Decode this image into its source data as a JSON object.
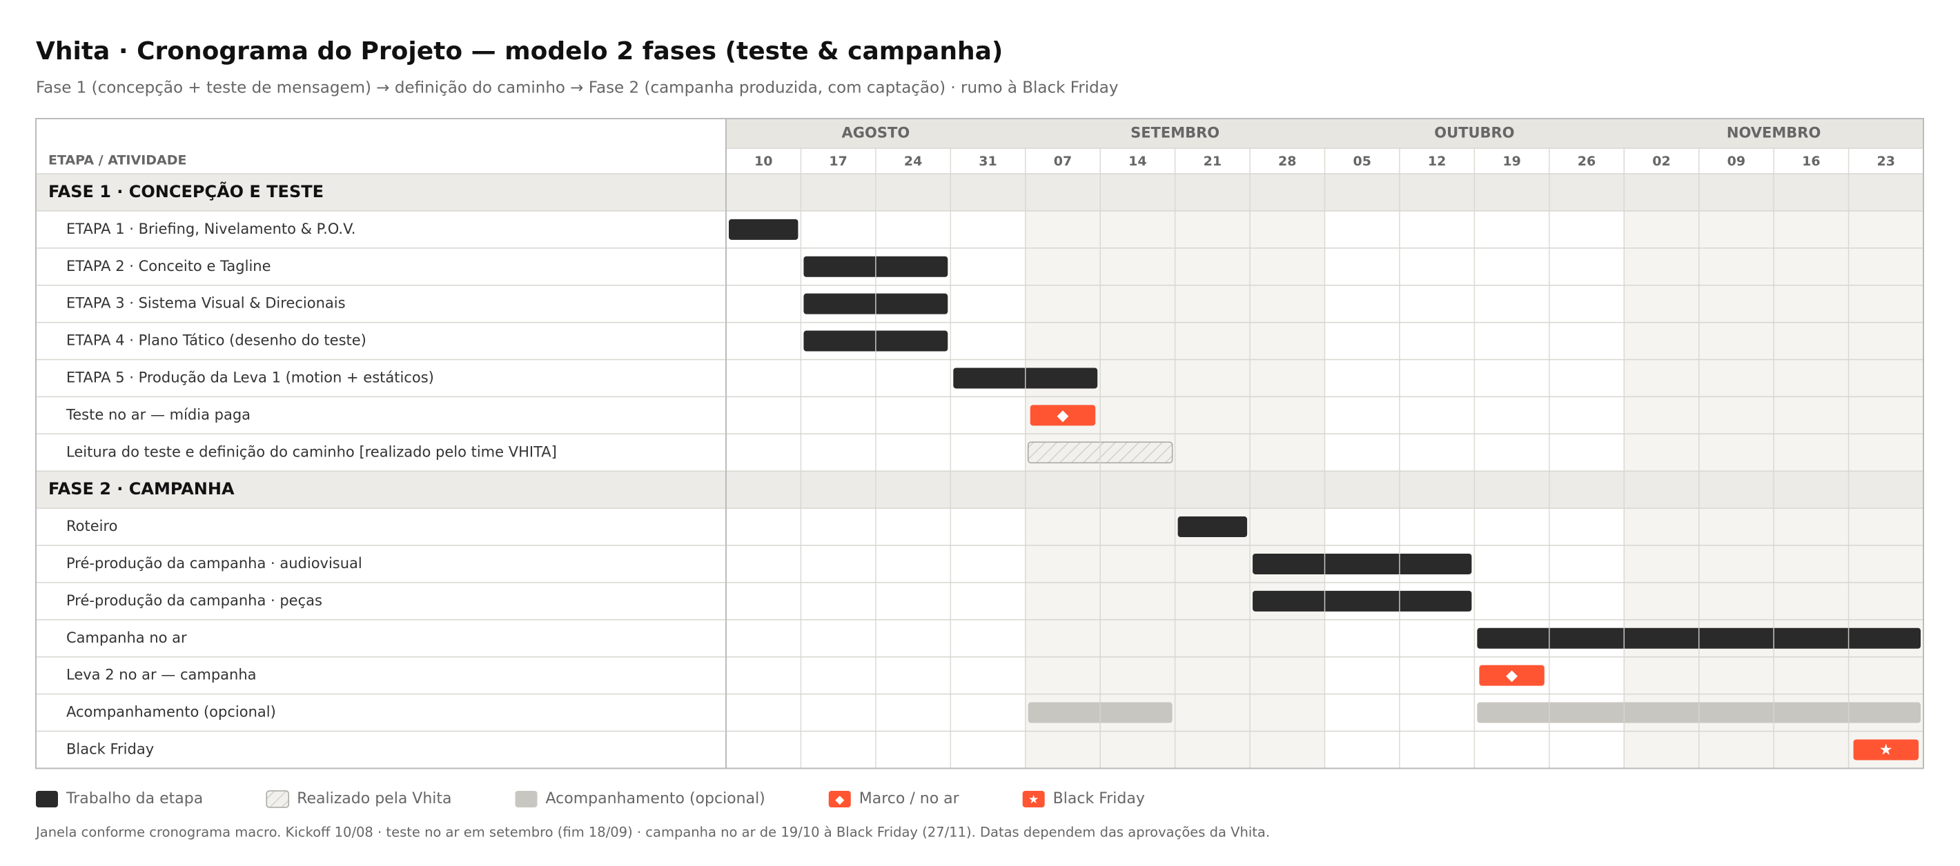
{
  "title": "Vhita · Cronograma do Projeto — modelo 2 fases (teste & campanha)",
  "subtitle": "Fase 1 (concepção + teste de mensagem) → definição do caminho → Fase 2 (campanha produzida, com captação) · rumo à Black Friday",
  "header": {
    "activity": "ETAPA / ATIVIDADE",
    "months": [
      {
        "label": "AGOSTO",
        "start": "10"
      },
      {
        "label": "SETEMBRO",
        "start": "07"
      },
      {
        "label": "OUTUBRO",
        "start": "05"
      },
      {
        "label": "NOVEMBRO",
        "start": "02"
      }
    ],
    "weeks": [
      "10",
      "17",
      "24",
      "31",
      "07",
      "14",
      "21",
      "28",
      "05",
      "12",
      "19",
      "26",
      "02",
      "09",
      "16",
      "23"
    ]
  },
  "colors": {
    "work": "#2a2a2a",
    "done": "#f1f0ec",
    "optional": "#c8c6c0",
    "milestone": "#ff5533",
    "blackfriday": "#ff5533"
  },
  "rows": [
    {
      "phase": "FASE 1 · CONCEPÇÃO E TESTE"
    },
    {
      "label": "ETAPA 1 · Briefing, Nivelamento & P.O.V.",
      "bars": [
        {
          "start": "10",
          "end": "10",
          "kind": "work"
        }
      ]
    },
    {
      "label": "ETAPA 2 · Conceito e Tagline",
      "bars": [
        {
          "start": "17",
          "end": "24",
          "kind": "work"
        }
      ]
    },
    {
      "label": "ETAPA 3 · Sistema Visual & Direcionais",
      "bars": [
        {
          "start": "17",
          "end": "24",
          "kind": "work"
        }
      ]
    },
    {
      "label": "ETAPA 4 · Plano Tático (desenho do teste)",
      "bars": [
        {
          "start": "17",
          "end": "24",
          "kind": "work"
        }
      ]
    },
    {
      "label": "ETAPA 5 · Produção da Leva 1 (motion + estáticos)",
      "bars": [
        {
          "start": "31",
          "end": "07",
          "kind": "work"
        }
      ]
    },
    {
      "label": "Teste no ar — mídia paga",
      "bars": [
        {
          "start": "07",
          "end": "07",
          "kind": "milestone",
          "icon": "◆"
        }
      ]
    },
    {
      "label": "Leitura do teste e definição do caminho [realizado pelo time VHITA]",
      "bars": [
        {
          "start": "07",
          "end": "14",
          "kind": "done"
        }
      ]
    },
    {
      "phase": "FASE 2 · CAMPANHA"
    },
    {
      "label": "Roteiro",
      "bars": [
        {
          "start": "21",
          "end": "21",
          "kind": "work"
        }
      ]
    },
    {
      "label": "Pré-produção da campanha · audiovisual",
      "bars": [
        {
          "start": "28",
          "end": "12",
          "kind": "work"
        }
      ]
    },
    {
      "label": "Pré-produção da campanha · peças",
      "bars": [
        {
          "start": "28",
          "end": "12",
          "kind": "work"
        }
      ]
    },
    {
      "label": "Campanha no ar",
      "bars": [
        {
          "start": "19",
          "end": "23",
          "kind": "work"
        }
      ]
    },
    {
      "label": "Leva 2 no ar — campanha",
      "bars": [
        {
          "start": "19",
          "end": "19",
          "kind": "milestone",
          "icon": "◆"
        }
      ]
    },
    {
      "label": "Acompanhamento (opcional)",
      "bars": [
        {
          "start": "07",
          "end": "14",
          "kind": "optional"
        },
        {
          "start": "19",
          "end": "23",
          "kind": "optional"
        }
      ]
    },
    {
      "label": "Black Friday",
      "bars": [
        {
          "start": "23",
          "end": "23",
          "kind": "blackfriday",
          "icon": "★"
        }
      ]
    }
  ],
  "legend": [
    {
      "kind": "work",
      "label": "Trabalho da etapa"
    },
    {
      "kind": "done",
      "label": "Realizado pela Vhita"
    },
    {
      "kind": "optional",
      "label": "Acompanhamento (opcional)"
    },
    {
      "kind": "milestone",
      "icon": "◆",
      "label": "Marco / no ar"
    },
    {
      "kind": "blackfriday",
      "icon": "★",
      "label": "Black Friday"
    }
  ],
  "footnote": "Janela conforme cronograma macro. Kickoff 10/08 · teste no ar em setembro (fim 18/09) · campanha no ar de 19/10 à Black Friday (27/11). Datas dependem das aprovações da Vhita."
}
